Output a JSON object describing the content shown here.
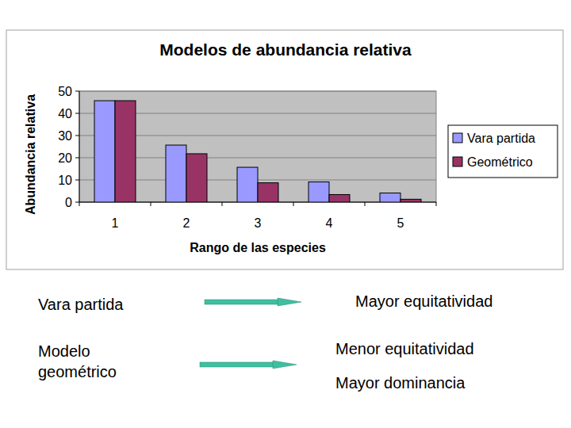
{
  "chart_data": {
    "type": "bar",
    "title": "Modelos de abundancia relativa",
    "x_label": "Rango de las especies",
    "y_label": "Abundancia relativa",
    "categories": [
      "1",
      "2",
      "3",
      "4",
      "5"
    ],
    "series": [
      {
        "name": "Vara partida",
        "color": "#9999ff",
        "values": [
          45.7,
          25.7,
          15.7,
          9.1,
          4.1
        ]
      },
      {
        "name": "Geométrico",
        "color": "#993366",
        "values": [
          45.7,
          21.8,
          8.7,
          3.4,
          1.3
        ]
      }
    ],
    "ylim": [
      0,
      50
    ],
    "yticks": [
      0,
      10,
      20,
      30,
      40,
      50
    ],
    "grid": true,
    "legend": "right"
  },
  "notes": [
    {
      "model": "Vara partida",
      "effects": [
        "Mayor equitatividad"
      ]
    },
    {
      "model": "Modelo geométrico",
      "effects": [
        "Menor equitatividad",
        "Mayor dominancia"
      ]
    }
  ]
}
